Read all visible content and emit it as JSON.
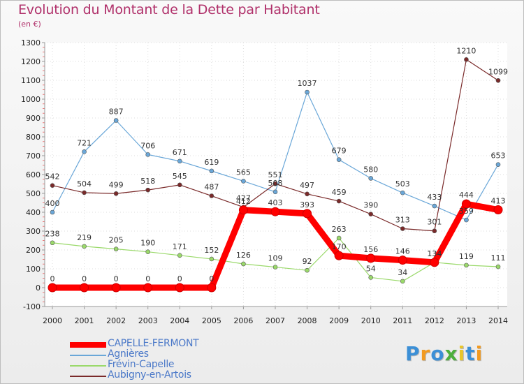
{
  "title": "Evolution du Montant de la Dette par Habitant",
  "subtitle": "(en €)",
  "logo": {
    "text": "Proxiti",
    "colors": [
      "#3b8fd6",
      "#f29a1f",
      "#3b8fd6",
      "#4caf3c",
      "#e9c62b",
      "#3b8fd6",
      "#f29a1f"
    ]
  },
  "chart_data": {
    "type": "line",
    "x": [
      "2000",
      "2001",
      "2002",
      "2003",
      "2004",
      "2005",
      "2006",
      "2007",
      "2008",
      "2009",
      "2010",
      "2011",
      "2012",
      "2013",
      "2014"
    ],
    "ylim": [
      -100,
      1300
    ],
    "yticks": [
      -100,
      0,
      100,
      200,
      300,
      400,
      500,
      600,
      700,
      800,
      900,
      1000,
      1100,
      1200,
      1300
    ],
    "grid": true,
    "legend_position": "bottom-left",
    "series": [
      {
        "name": "CAPELLE-FERMONT",
        "color": "#ff0000",
        "values": [
          0,
          0,
          0,
          0,
          0,
          0,
          412,
          403,
          393,
          170,
          156,
          146,
          134,
          444,
          413
        ]
      },
      {
        "name": "Agnières",
        "color": "#6aa7d8",
        "values": [
          400,
          721,
          887,
          706,
          671,
          619,
          565,
          508,
          1037,
          679,
          580,
          503,
          433,
          359,
          653
        ]
      },
      {
        "name": "Frévin-Capelle",
        "color": "#9ad96a",
        "values": [
          238,
          219,
          205,
          190,
          171,
          152,
          126,
          109,
          92,
          263,
          54,
          34,
          134,
          119,
          111
        ]
      },
      {
        "name": "Aubigny-en-Artois",
        "color": "#7a2a2a",
        "values": [
          542,
          504,
          499,
          518,
          545,
          487,
          427,
          551,
          497,
          459,
          390,
          313,
          301,
          1210,
          1099
        ]
      }
    ]
  }
}
